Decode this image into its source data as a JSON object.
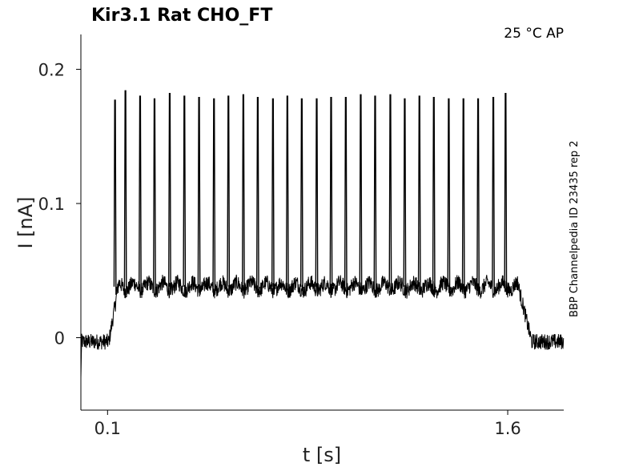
{
  "chart_data": {
    "type": "line",
    "title": "Kir3.1  Rat  CHO_FT",
    "condition": "25 °C  AP",
    "side_note": "BBP Channelpedia ID 23435 rep 2",
    "xlabel": "t [s]",
    "ylabel": "I [nA]",
    "xlim": [
      0.0,
      1.81
    ],
    "ylim": [
      -0.054,
      0.226
    ],
    "x_ticks": [
      0.1,
      1.6
    ],
    "x_tick_labels": [
      "0.1",
      "1.6"
    ],
    "y_ticks": [
      0,
      0.1,
      0.2
    ],
    "y_tick_labels": [
      "0",
      "0.1",
      "0.2"
    ],
    "grid": false,
    "color": "#000000",
    "baseline_current": -0.003,
    "plateau_current": 0.038,
    "stim_start": 0.1,
    "stim_end": 1.64,
    "noise_amplitude": 0.006,
    "spike_times": [
      0.128,
      0.167,
      0.222,
      0.276,
      0.333,
      0.388,
      0.443,
      0.499,
      0.553,
      0.609,
      0.663,
      0.72,
      0.774,
      0.828,
      0.884,
      0.938,
      0.993,
      1.049,
      1.103,
      1.16,
      1.214,
      1.269,
      1.323,
      1.379,
      1.434,
      1.489,
      1.546,
      1.592
    ],
    "spike_peaks": [
      0.177,
      0.184,
      0.18,
      0.178,
      0.182,
      0.18,
      0.179,
      0.178,
      0.18,
      0.181,
      0.179,
      0.178,
      0.18,
      0.178,
      0.178,
      0.179,
      0.179,
      0.181,
      0.18,
      0.181,
      0.178,
      0.18,
      0.179,
      0.178,
      0.178,
      0.178,
      0.179,
      0.182
    ]
  }
}
